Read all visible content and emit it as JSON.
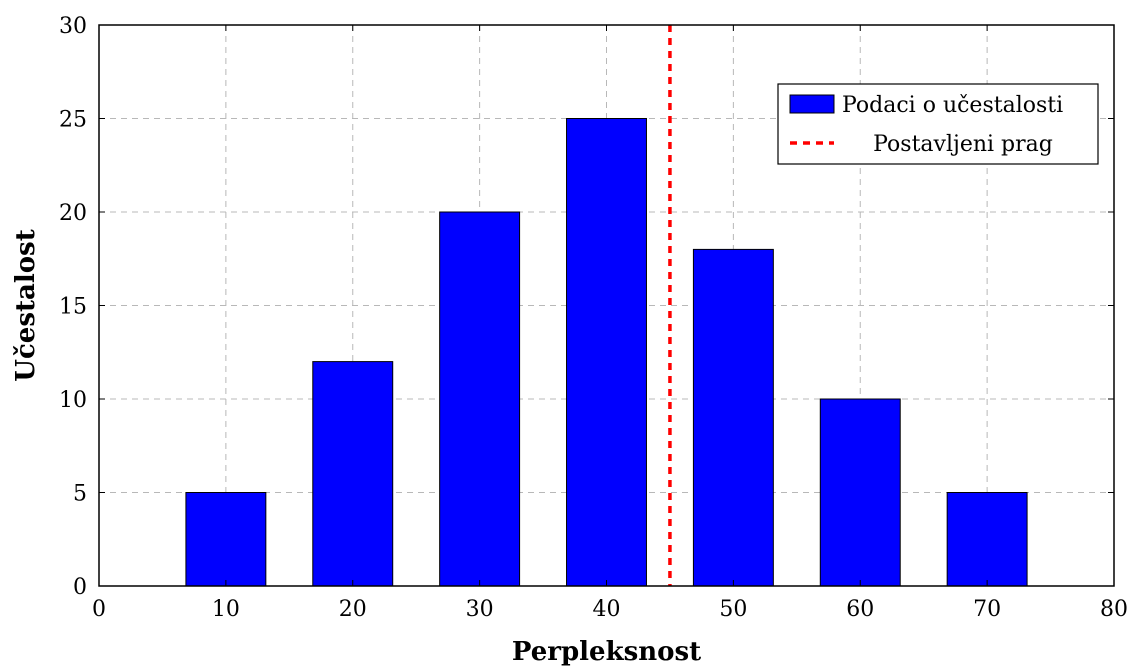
{
  "chart_data": {
    "type": "bar",
    "x": [
      10,
      20,
      30,
      40,
      50,
      60,
      70
    ],
    "values": [
      5,
      12,
      20,
      25,
      18,
      10,
      5
    ],
    "bar_width": 6.3,
    "xlim": [
      0,
      80
    ],
    "ylim": [
      0,
      30
    ],
    "xticks": [
      "0",
      "10",
      "20",
      "30",
      "40",
      "50",
      "60",
      "70",
      "80"
    ],
    "yticks": [
      "0",
      "5",
      "10",
      "15",
      "20",
      "25",
      "30"
    ],
    "xlabel": "Perpleksnost",
    "ylabel": "Učestalost",
    "grid": true,
    "legend_position": "top-right",
    "series": [
      {
        "name": "Podaci o učestalosti",
        "type": "bar",
        "color": "#0000ff"
      }
    ],
    "threshold": {
      "name": "Postavljeni prag",
      "x": 45,
      "color": "#ff0000",
      "style": "dashed"
    }
  }
}
